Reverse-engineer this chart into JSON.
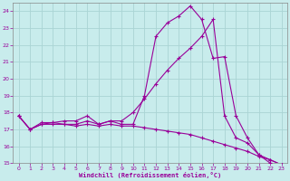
{
  "bg_color": "#c8ecec",
  "grid_color": "#aad4d4",
  "line_color": "#990099",
  "spine_color": "#888888",
  "xlim": [
    -0.5,
    23.5
  ],
  "ylim": [
    15,
    24.5
  ],
  "yticks": [
    15,
    16,
    17,
    18,
    19,
    20,
    21,
    22,
    23,
    24
  ],
  "xticks": [
    0,
    1,
    2,
    3,
    4,
    5,
    6,
    7,
    8,
    9,
    10,
    11,
    12,
    13,
    14,
    15,
    16,
    17,
    18,
    19,
    20,
    21,
    22,
    23
  ],
  "xlabel": "Windchill (Refroidissement éolien,°C)",
  "line1_x": [
    0,
    1,
    2,
    3,
    4,
    5,
    6,
    7,
    8,
    9,
    10,
    11,
    12,
    13,
    14,
    15,
    16,
    17,
    18,
    19,
    20,
    21,
    22,
    23
  ],
  "line1_y": [
    17.8,
    17.0,
    17.4,
    17.4,
    17.5,
    17.5,
    17.8,
    17.3,
    17.5,
    17.3,
    17.3,
    19.0,
    22.5,
    23.3,
    23.7,
    24.3,
    23.5,
    21.2,
    21.3,
    17.8,
    16.5,
    15.5,
    15.0,
    14.9
  ],
  "line2_x": [
    0,
    1,
    2,
    3,
    4,
    5,
    6,
    7,
    8,
    9,
    10,
    11,
    12,
    13,
    14,
    15,
    16,
    17,
    18,
    19,
    20,
    21,
    22,
    23
  ],
  "line2_y": [
    17.8,
    17.0,
    17.3,
    17.4,
    17.3,
    17.3,
    17.5,
    17.3,
    17.5,
    17.5,
    18.0,
    18.8,
    19.7,
    20.5,
    21.2,
    21.8,
    22.5,
    23.5,
    17.8,
    16.5,
    16.2,
    15.5,
    15.2,
    14.9
  ],
  "line3_x": [
    0,
    1,
    2,
    3,
    4,
    5,
    6,
    7,
    8,
    9,
    10,
    11,
    12,
    13,
    14,
    15,
    16,
    17,
    18,
    19,
    20,
    21,
    22,
    23
  ],
  "line3_y": [
    17.8,
    17.0,
    17.3,
    17.3,
    17.3,
    17.2,
    17.3,
    17.2,
    17.3,
    17.2,
    17.2,
    17.1,
    17.0,
    16.9,
    16.8,
    16.7,
    16.5,
    16.3,
    16.1,
    15.9,
    15.7,
    15.4,
    15.2,
    14.9
  ]
}
